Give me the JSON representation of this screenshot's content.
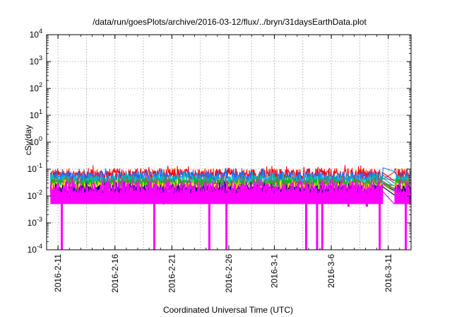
{
  "chart_data": {
    "type": "line",
    "title": "/data/run/goesPlots/archive/2016-03-12/flux/../bryn/31daysEarthData.plot",
    "xlabel": "Coordinated Universal Time (UTC)",
    "ylabel": "cSv/day",
    "yscale": "log",
    "ylim": [
      0.0001,
      10000
    ],
    "xlim": [
      "2016-02-10",
      "2016-03-13"
    ],
    "grid": true,
    "x_ticks": [
      "2016-2-11",
      "2016-2-16",
      "2016-2-21",
      "2016-2-26",
      "2016-3-1",
      "2016-3-6",
      "2016-3-11"
    ],
    "y_ticks": [
      {
        "value": 0.0001,
        "base": "10",
        "exp": "-4"
      },
      {
        "value": 0.001,
        "base": "10",
        "exp": "-3"
      },
      {
        "value": 0.01,
        "base": "10",
        "exp": "-2"
      },
      {
        "value": 0.1,
        "base": "10",
        "exp": "-1"
      },
      {
        "value": 1,
        "base": "10",
        "exp": "0"
      },
      {
        "value": 10,
        "base": "10",
        "exp": "1"
      },
      {
        "value": 100,
        "base": "10",
        "exp": "2"
      },
      {
        "value": 1000,
        "base": "10",
        "exp": "3"
      },
      {
        "value": 10000,
        "base": "10",
        "exp": "4"
      }
    ],
    "data_gap": [
      "2016-03-10T13:00",
      "2016-03-11T13:00"
    ],
    "series": [
      {
        "color": "#ff0000",
        "base": 0.06,
        "spread": 0.25
      },
      {
        "color": "#1e6fff",
        "base": 0.05,
        "spread": 0.22
      },
      {
        "color": "#00bfbf",
        "base": 0.038,
        "spread": 0.2
      },
      {
        "color": "#8b6b4a",
        "base": 0.03,
        "spread": 0.18
      },
      {
        "color": "#00c000",
        "base": 0.027,
        "spread": 0.18
      },
      {
        "color": "#ffd700",
        "base": 0.022,
        "spread": 0.16
      },
      {
        "color": "#000080",
        "base": 0.018,
        "spread": 0.16
      },
      {
        "color": "#ff00ff",
        "base": 0.012,
        "low": 0.005,
        "high": 0.04
      }
    ],
    "dips": [
      {
        "date": "2016-02-11T08:00",
        "min": 0.0001
      },
      {
        "date": "2016-02-19T11:00",
        "min": 0.0001
      },
      {
        "date": "2016-02-24T07:00",
        "min": 0.0001
      },
      {
        "date": "2016-02-25T19:00",
        "min": 0.0001
      },
      {
        "date": "2016-03-03T19:00",
        "min": 0.0001
      },
      {
        "date": "2016-03-04T18:00",
        "min": 0.0001
      },
      {
        "date": "2016-03-05T05:00",
        "min": 0.0001
      },
      {
        "date": "2016-03-07T12:00",
        "min": 0.004
      },
      {
        "date": "2016-03-09T03:00",
        "min": 0.004
      },
      {
        "date": "2016-03-10T06:00",
        "min": 0.0001
      },
      {
        "date": "2016-03-12T13:00",
        "min": 0.0001
      }
    ]
  }
}
